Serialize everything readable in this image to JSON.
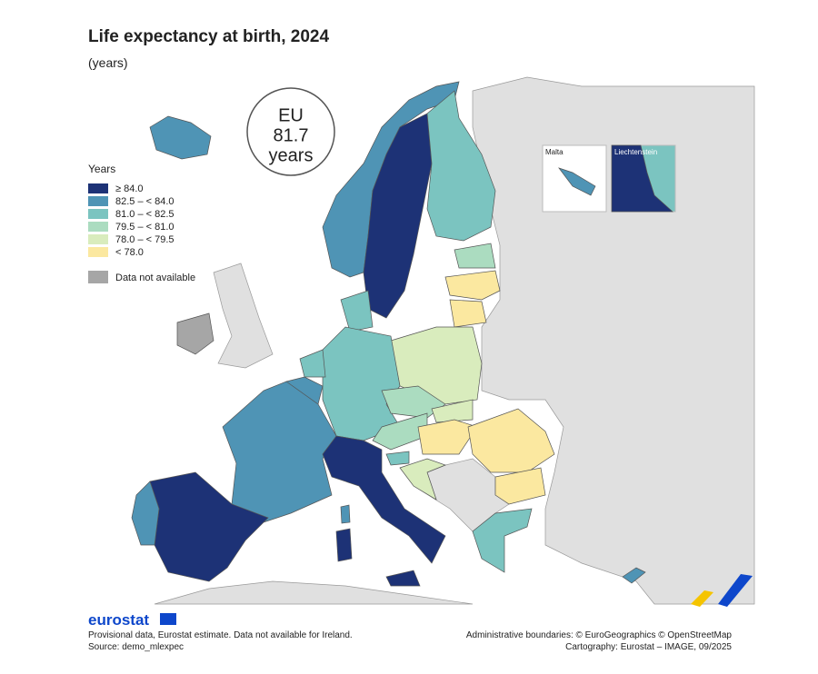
{
  "header": {
    "title": "Life expectancy at birth, 2024",
    "subtitle": "(years)"
  },
  "eu_badge": {
    "line1": "EU",
    "line2": "81.7",
    "line3": "years"
  },
  "legend": {
    "title": "Years",
    "items": [
      {
        "label": "≥ 84.0",
        "color": "#1d3276"
      },
      {
        "label": "82.5 – < 84.0",
        "color": "#4f94b5"
      },
      {
        "label": "81.0 – < 82.5",
        "color": "#7bc4c0"
      },
      {
        "label": "79.5 – < 81.0",
        "color": "#abdcc0"
      },
      {
        "label": "78.0 – < 79.5",
        "color": "#d9ecbd"
      },
      {
        "label": "< 78.0",
        "color": "#fbe8a0"
      }
    ],
    "not_available": {
      "label": "Data not available",
      "color": "#a6a6a6"
    }
  },
  "insets": {
    "malta": "Malta",
    "liechtenstein": "Liechtenstein"
  },
  "footer": {
    "logo": "eurostat",
    "notes": [
      "Provisional data, Eurostat estimate. Data not available for Ireland.",
      "Source: demo_mlexpec"
    ],
    "credits": [
      "Administrative boundaries: © EuroGeographics © OpenStreetMap",
      "Cartography: Eurostat – IMAGE, 09/2025"
    ]
  }
}
